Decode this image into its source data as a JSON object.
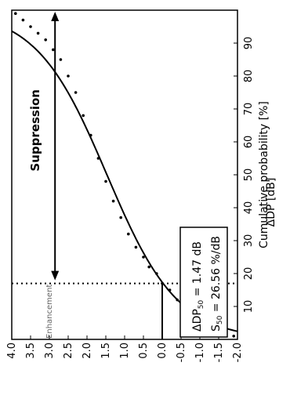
{
  "chart_data": {
    "type": "scatter",
    "xlabel": "Cumulative probability  [%]",
    "ylabel": "ΔDP  [dB]",
    "x_ticks": [
      10,
      20,
      30,
      40,
      50,
      60,
      70,
      80,
      90
    ],
    "y_ticks": [
      "-2.0",
      "-1.5",
      "-1.0",
      "-0.5",
      "0.0",
      "0.5",
      "1.0",
      "1.5",
      "2.0",
      "2.5",
      "3.0",
      "3.5",
      "4.0"
    ],
    "xlim": [
      0,
      100
    ],
    "ylim": [
      -2.0,
      4.0
    ],
    "points": [
      {
        "x": 1,
        "y": -1.9
      },
      {
        "x": 2,
        "y": -1.7
      },
      {
        "x": 3,
        "y": -1.5
      },
      {
        "x": 4,
        "y": -1.3
      },
      {
        "x": 6,
        "y": -1.1
      },
      {
        "x": 8,
        "y": -0.9
      },
      {
        "x": 10,
        "y": -0.6
      },
      {
        "x": 12,
        "y": -0.4
      },
      {
        "x": 15,
        "y": -0.2
      },
      {
        "x": 17,
        "y": 0.0
      },
      {
        "x": 20,
        "y": 0.15
      },
      {
        "x": 22,
        "y": 0.35
      },
      {
        "x": 25,
        "y": 0.5
      },
      {
        "x": 28,
        "y": 0.7
      },
      {
        "x": 32,
        "y": 0.9
      },
      {
        "x": 37,
        "y": 1.1
      },
      {
        "x": 42,
        "y": 1.3
      },
      {
        "x": 48,
        "y": 1.5
      },
      {
        "x": 55,
        "y": 1.7
      },
      {
        "x": 62,
        "y": 1.9
      },
      {
        "x": 68,
        "y": 2.1
      },
      {
        "x": 75,
        "y": 2.3
      },
      {
        "x": 80,
        "y": 2.5
      },
      {
        "x": 85,
        "y": 2.7
      },
      {
        "x": 88,
        "y": 2.9
      },
      {
        "x": 91,
        "y": 3.1
      },
      {
        "x": 93,
        "y": 3.3
      },
      {
        "x": 95,
        "y": 3.5
      },
      {
        "x": 97,
        "y": 3.7
      },
      {
        "x": 99,
        "y": 3.9
      }
    ],
    "fit_curve": {
      "type": "logistic",
      "dp50": 1.47,
      "s50": 26.56
    },
    "threshold_line_percent": 17,
    "zero_line_dp": 0.0,
    "suppression_arrow_dp": 2.85,
    "annotations": {
      "suppression": "Suppression",
      "enhancement": "Enhancement",
      "dp50_prefix": "ΔDP",
      "dp50_sub": "50",
      "dp50_value": " = 1.47 dB",
      "s50_prefix": "S",
      "s50_sub": "50",
      "s50_value": " = 26.56  %/dB"
    }
  }
}
